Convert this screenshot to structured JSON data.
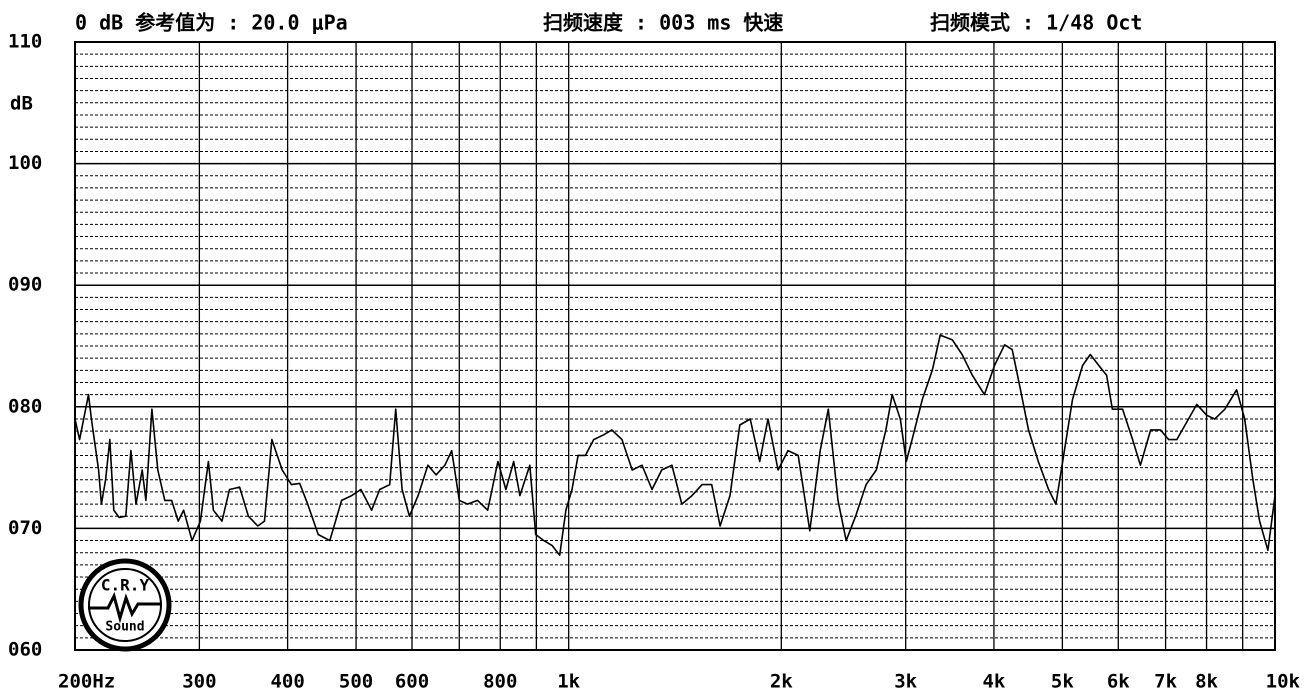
{
  "chart_data": {
    "type": "line",
    "header": [
      "0 dB 参考值为 : 20.0 μPa",
      "扫频速度 : 003 ms 快速",
      "扫频模式 : 1/48  Oct"
    ],
    "y_label": "dB",
    "logo": [
      "C.R.Y",
      "Sound"
    ],
    "log_x": true,
    "grid": true,
    "xlim": [
      200,
      10000
    ],
    "xticks": [
      {
        "value": 200,
        "label": "200Hz"
      },
      300,
      400,
      500,
      600,
      800,
      {
        "value": 1000,
        "label": "1k"
      },
      {
        "value": 2000,
        "label": "2k"
      },
      {
        "value": 3000,
        "label": "3k"
      },
      {
        "value": 4000,
        "label": "4k"
      },
      {
        "value": 5000,
        "label": "5k"
      },
      {
        "value": 6000,
        "label": "6k"
      },
      {
        "value": 7000,
        "label": "7k"
      },
      {
        "value": 8000,
        "label": "8k"
      },
      {
        "value": 10000,
        "label": "10k"
      }
    ],
    "xminor": [
      700,
      900,
      9000
    ],
    "ylim": [
      60,
      110
    ],
    "yticks": [
      {
        "value": 60,
        "label": "060"
      },
      {
        "value": 70,
        "label": "070"
      },
      {
        "value": 80,
        "label": "080"
      },
      {
        "value": 90,
        "label": "090"
      },
      100,
      110
    ],
    "yminor_step": 1,
    "color": "#000000",
    "x": [
      200,
      203,
      209,
      211,
      216,
      218,
      221,
      224,
      227,
      231,
      236,
      240,
      244,
      249,
      252,
      257,
      262,
      268,
      274,
      280,
      285,
      293,
      301,
      309,
      314,
      323,
      331,
      342,
      352,
      363,
      371,
      380,
      393,
      405,
      416,
      427,
      442,
      459,
      477,
      493,
      508,
      526,
      540,
      558,
      569,
      581,
      595,
      612,
      632,
      649,
      668,
      683,
      700,
      719,
      743,
      768,
      794,
      815,
      836,
      853,
      881,
      898,
      922,
      947,
      971,
      991,
      1011,
      1031,
      1056,
      1085,
      1121,
      1151,
      1190,
      1230,
      1270,
      1312,
      1354,
      1400,
      1446,
      1495,
      1545,
      1594,
      1638,
      1692,
      1747,
      1807,
      1864,
      1915,
      1979,
      2044,
      2113,
      2195,
      2270,
      2331,
      2406,
      2471,
      2548,
      2637,
      2726,
      2813,
      2871,
      2948,
      3006,
      3063,
      3167,
      3272,
      3357,
      3494,
      3606,
      3728,
      3877,
      4007,
      4141,
      4246,
      4362,
      4477,
      4622,
      4780,
      4896,
      5033,
      5168,
      5340,
      5476,
      5665,
      5776,
      5885,
      6085,
      6287,
      6449,
      6669,
      6883,
      7071,
      7261,
      7544,
      7750,
      8006,
      8215,
      8492,
      8822,
      9060,
      9305,
      9510,
      9771,
      10000
    ],
    "values": [
      79,
      77.3,
      81,
      79,
      74.8,
      72,
      74,
      77.3,
      71.5,
      70.9,
      71,
      76.4,
      72,
      74.8,
      72.3,
      79.8,
      74.8,
      72.3,
      72.3,
      70.6,
      71.5,
      69,
      70.6,
      75.5,
      71.5,
      70.6,
      73.2,
      73.4,
      71,
      70.2,
      70.6,
      77.3,
      74.8,
      73.6,
      73.7,
      72,
      69.5,
      69,
      72.3,
      72.7,
      73.2,
      71.5,
      73.2,
      73.6,
      79.8,
      73.2,
      71,
      72.7,
      75.2,
      74.4,
      75.2,
      76.4,
      72.3,
      72,
      72.3,
      71.5,
      75.5,
      73.2,
      75.5,
      72.7,
      75.2,
      69.5,
      69,
      68.6,
      67.8,
      71.5,
      73.2,
      76,
      76,
      77.3,
      77.7,
      78.1,
      77.3,
      74.8,
      75.2,
      73.2,
      74.8,
      75.2,
      72,
      72.7,
      73.6,
      73.6,
      70.2,
      72.7,
      78.5,
      79,
      75.5,
      79,
      74.8,
      76.4,
      76,
      69.8,
      76.4,
      79.8,
      72.3,
      69,
      71,
      73.6,
      74.8,
      78.1,
      81,
      79,
      75.5,
      77.3,
      80.6,
      83,
      85.9,
      85.5,
      84.3,
      82.6,
      81,
      83.4,
      85.1,
      84.7,
      81.4,
      78.1,
      75.5,
      73.2,
      72,
      76.4,
      80.6,
      83.4,
      84.3,
      83.2,
      82.6,
      79.8,
      79.8,
      77.3,
      75.2,
      78.1,
      78.1,
      77.3,
      77.3,
      79,
      80.2,
      79.3,
      79,
      79.8,
      81.4,
      79,
      74,
      70.6,
      68.2,
      72.7
    ]
  }
}
